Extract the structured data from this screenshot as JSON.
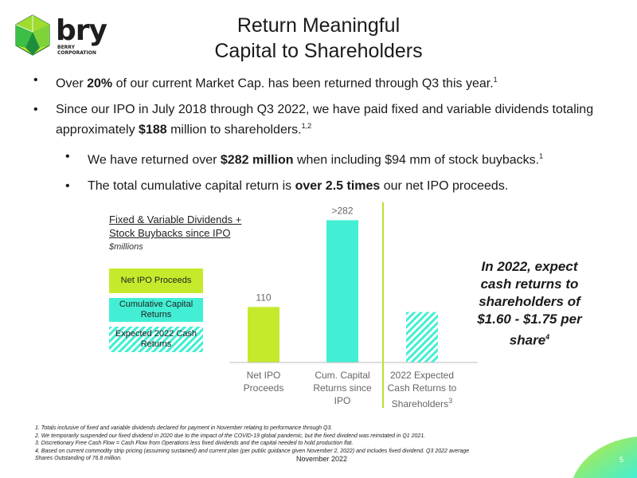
{
  "logo": {
    "name": "bry",
    "sub": "BERRY CORPORATION"
  },
  "title": {
    "line1": "Return Meaningful",
    "line2": "Capital to Shareholders"
  },
  "bullets": [
    {
      "pre": "Over ",
      "bold": "20%",
      "post": " of our current Market Cap. has been returned through Q3 this year.",
      "sup": "1"
    },
    {
      "pre": "Since our IPO in July 2018 through Q3 2022, we have paid fixed and variable dividends totaling approximately ",
      "bold": "$188",
      "post": " million to shareholders.",
      "sup": "1,2"
    },
    {
      "pre": "We have returned over ",
      "bold": "$282 million",
      "post": " when including $94 mm of stock buybacks.",
      "sup": "1"
    },
    {
      "pre": "The total cumulative capital return is ",
      "bold": "over 2.5 times",
      "post": " our net IPO proceeds.",
      "sup": ""
    }
  ],
  "callout": "In 2022, expect cash returns to shareholders of $1.60 - $1.75 per share",
  "callout_sup": "4",
  "footnotes": [
    "1. Totals inclusive of fixed and variable dividends declared for payment in November relating to performance through Q3.",
    "2. We temporarily suspended our fixed dividend in 2020 due to the impact of the COVID-19 global pandemic, but the fixed dividend was reinstated in Q1 2021.",
    "3. Discretionary Free Cash Flow = Cash Flow from Operations less fixed dividends and the capital needed to hold production flat.",
    "4. Based on current commodity strip pricing (assuming sustained) and current plan (per public guidance given November 2, 2022) and includes fixed dividend. Q3 2022 average",
    "Shares Outstanding of 76.8 million."
  ],
  "date": "November 2022",
  "page_number": "5",
  "colors": {
    "lime": "#c5ea2c",
    "aqua": "#43efd4",
    "divider": "#b9e22a",
    "axis": "#bbbbbb"
  },
  "chart_data": {
    "type": "bar",
    "title_line1": "Fixed & Variable Dividends +",
    "title_line2": "Stock Buybacks since IPO",
    "unit": "$millions",
    "categories": [
      {
        "lines": [
          "Net IPO",
          "Proceeds"
        ]
      },
      {
        "lines": [
          "Cum. Capital",
          "Returns since",
          "IPO"
        ]
      },
      {
        "lines": [
          "2022 Expected",
          "Cash Returns to",
          "Shareholders"
        ],
        "sup": "3"
      }
    ],
    "series": [
      {
        "name": "Net IPO Proceeds",
        "color": "#c5ea2c",
        "pattern": "solid"
      },
      {
        "name": "Cumulative Capital Returns",
        "color": "#43efd4",
        "pattern": "solid"
      },
      {
        "name": "Expected 2022 Cash Returns",
        "color": "#43efd4",
        "pattern": "hatched"
      }
    ],
    "values": [
      110,
      282,
      100
    ],
    "data_labels": [
      "110",
      ">282",
      ""
    ],
    "ylim": [
      0,
      300
    ]
  }
}
